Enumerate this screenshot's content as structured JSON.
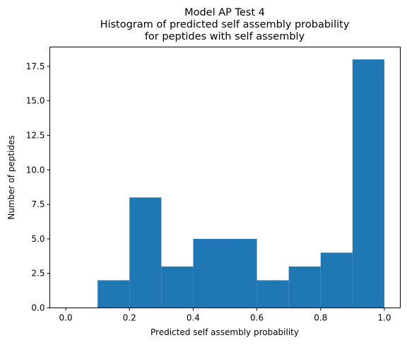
{
  "chart_data": {
    "type": "bar",
    "title_lines": [
      "Model AP Test 4",
      "Histogram of predicted self assembly probability",
      "for peptides with self assembly"
    ],
    "xlabel": "Predicted self assembly probability",
    "ylabel": "Number of peptides",
    "bin_edges": [
      0.0,
      0.1,
      0.2,
      0.3,
      0.4,
      0.5,
      0.6,
      0.7,
      0.8,
      0.9,
      1.0
    ],
    "counts": [
      0,
      2,
      8,
      3,
      5,
      5,
      2,
      3,
      4,
      18
    ],
    "xlim": [
      -0.05,
      1.05
    ],
    "ylim": [
      0,
      18.9
    ],
    "xticks": [
      0.0,
      0.2,
      0.4,
      0.6,
      0.8,
      1.0
    ],
    "xtick_labels": [
      "0.0",
      "0.2",
      "0.4",
      "0.6",
      "0.8",
      "1.0"
    ],
    "yticks": [
      0,
      2.5,
      5,
      7.5,
      10,
      12.5,
      15,
      17.5
    ],
    "ytick_labels": [
      "0.0",
      "2.5",
      "5.0",
      "7.5",
      "10.0",
      "12.5",
      "15.0",
      "17.5"
    ],
    "bar_color": "#1f77b4",
    "grid": false,
    "legend": "none"
  }
}
